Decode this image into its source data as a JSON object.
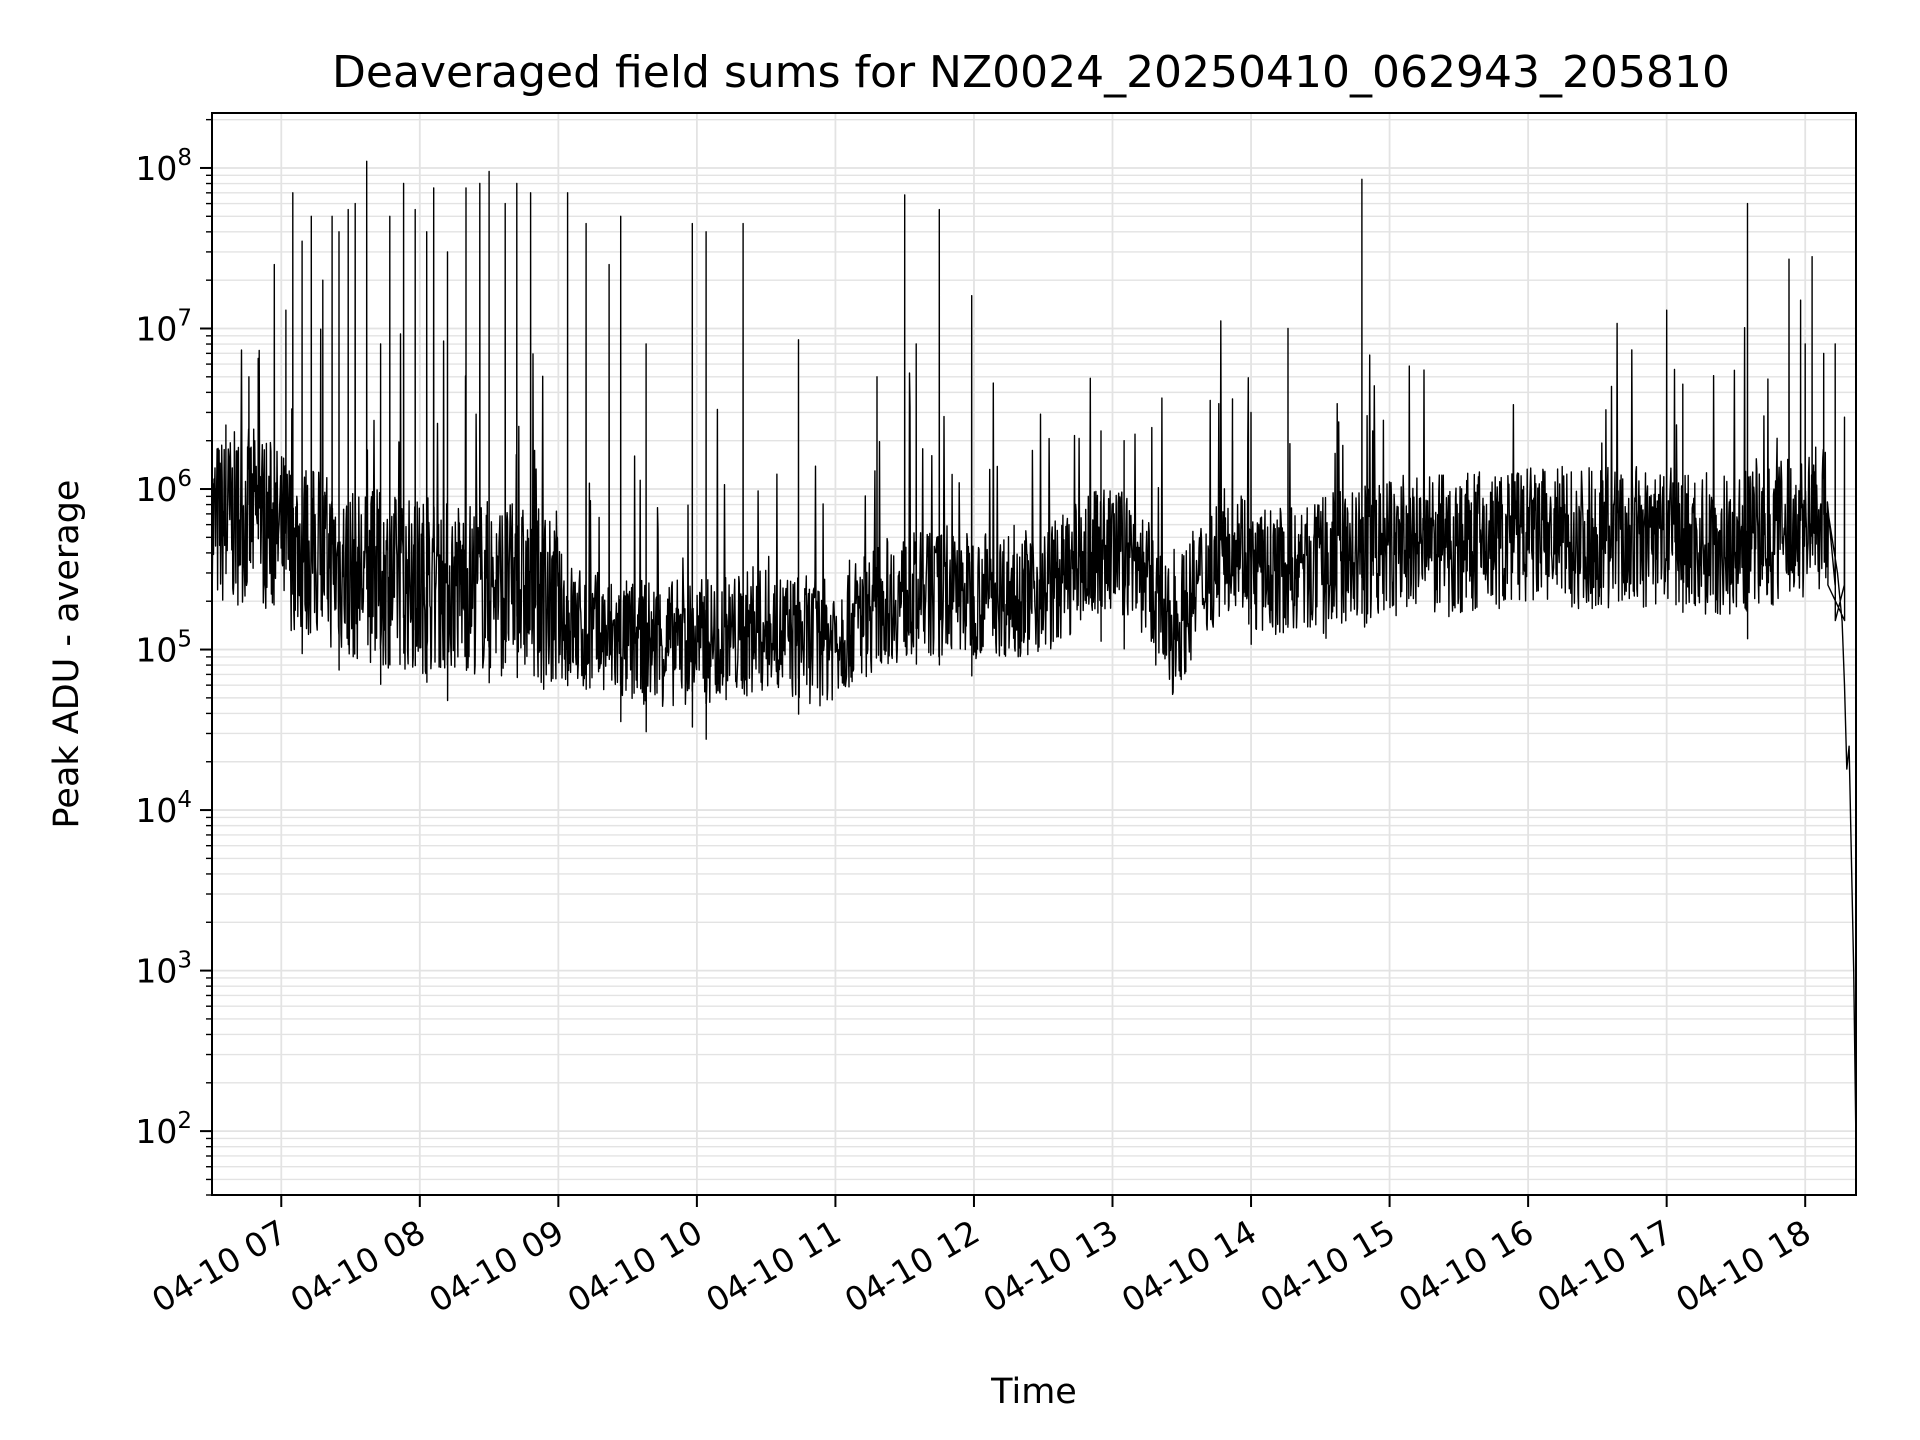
{
  "chart_data": {
    "type": "line",
    "title": "Deaveraged field sums for NZ0024_20250410_062943_205810",
    "xlabel": "Time",
    "ylabel": "Peak ADU - average",
    "yscale": "log",
    "ylim": [
      40,
      220000000
    ],
    "xlim": [
      "04-10 06:30",
      "04-10 18:22"
    ],
    "grid": true,
    "x_ticks": [
      "04-10 07",
      "04-10 08",
      "04-10 09",
      "04-10 10",
      "04-10 11",
      "04-10 12",
      "04-10 13",
      "04-10 14",
      "04-10 15",
      "04-10 16",
      "04-10 17",
      "04-10 18"
    ],
    "y_ticks": [
      {
        "value": 100,
        "base": "10",
        "exp": "2"
      },
      {
        "value": 1000,
        "base": "10",
        "exp": "3"
      },
      {
        "value": 10000,
        "base": "10",
        "exp": "4"
      },
      {
        "value": 100000,
        "base": "10",
        "exp": "5"
      },
      {
        "value": 1000000,
        "base": "10",
        "exp": "6"
      },
      {
        "value": 10000000,
        "base": "10",
        "exp": "7"
      },
      {
        "value": 100000000,
        "base": "10",
        "exp": "8"
      }
    ],
    "series": [
      {
        "color": "#000000",
        "baseline": [
          [
            "04-10 06:30",
            600000
          ],
          [
            "04-10 06:50",
            700000
          ],
          [
            "04-10 07:00",
            500000
          ],
          [
            "04-10 07:30",
            300000
          ],
          [
            "04-10 08:00",
            250000
          ],
          [
            "04-10 08:30",
            250000
          ],
          [
            "04-10 08:50",
            220000
          ],
          [
            "04-10 09:10",
            130000
          ],
          [
            "04-10 09:30",
            110000
          ],
          [
            "04-10 10:00",
            110000
          ],
          [
            "04-10 10:30",
            130000
          ],
          [
            "04-10 10:55",
            110000
          ],
          [
            "04-10 11:20",
            200000
          ],
          [
            "04-10 11:40",
            220000
          ],
          [
            "04-10 12:00",
            220000
          ],
          [
            "04-10 12:30",
            230000
          ],
          [
            "04-10 12:55",
            420000
          ],
          [
            "04-10 13:10",
            380000
          ],
          [
            "04-10 13:25",
            120000
          ],
          [
            "04-10 13:40",
            300000
          ],
          [
            "04-10 13:55",
            500000
          ],
          [
            "04-10 14:00",
            300000
          ],
          [
            "04-10 14:30",
            320000
          ],
          [
            "04-10 15:00",
            420000
          ],
          [
            "04-10 15:30",
            450000
          ],
          [
            "04-10 16:00",
            500000
          ],
          [
            "04-10 16:30",
            500000
          ],
          [
            "04-10 17:00",
            480000
          ],
          [
            "04-10 17:30",
            450000
          ],
          [
            "04-10 18:00",
            600000
          ],
          [
            "04-10 18:10",
            700000
          ]
        ],
        "spikes": [
          [
            "04-10 06:36",
            2500000
          ],
          [
            "04-10 06:46",
            5000000
          ],
          [
            "04-10 06:50",
            6500000
          ],
          [
            "04-10 06:57",
            25000000
          ],
          [
            "04-10 07:02",
            13000000
          ],
          [
            "04-10 07:05",
            70000000
          ],
          [
            "04-10 07:09",
            35000000
          ],
          [
            "04-10 07:13",
            50000000
          ],
          [
            "04-10 07:18",
            20000000
          ],
          [
            "04-10 07:22",
            50000000
          ],
          [
            "04-10 07:25",
            40000000
          ],
          [
            "04-10 07:29",
            55000000
          ],
          [
            "04-10 07:32",
            60000000
          ],
          [
            "04-10 07:37",
            110000000
          ],
          [
            "04-10 07:43",
            8000000
          ],
          [
            "04-10 07:47",
            50000000
          ],
          [
            "04-10 07:53",
            80000000
          ],
          [
            "04-10 07:58",
            55000000
          ],
          [
            "04-10 08:03",
            40000000
          ],
          [
            "04-10 08:06",
            75000000
          ],
          [
            "04-10 08:12",
            30000000
          ],
          [
            "04-10 08:20",
            75000000
          ],
          [
            "04-10 08:26",
            80000000
          ],
          [
            "04-10 08:30",
            95000000
          ],
          [
            "04-10 08:37",
            60000000
          ],
          [
            "04-10 08:42",
            80000000
          ],
          [
            "04-10 08:48",
            70000000
          ],
          [
            "04-10 09:04",
            70000000
          ],
          [
            "04-10 09:12",
            45000000
          ],
          [
            "04-10 09:22",
            25000000
          ],
          [
            "04-10 09:27",
            50000000
          ],
          [
            "04-10 09:38",
            8000000
          ],
          [
            "04-10 09:58",
            45000000
          ],
          [
            "04-10 10:04",
            40000000
          ],
          [
            "04-10 10:20",
            45000000
          ],
          [
            "04-10 10:44",
            8500000
          ],
          [
            "04-10 11:18",
            5000000
          ],
          [
            "04-10 11:30",
            68000000
          ],
          [
            "04-10 11:35",
            8000000
          ],
          [
            "04-10 11:45",
            55000000
          ],
          [
            "04-10 11:59",
            16000000
          ],
          [
            "04-10 12:55",
            2300000
          ],
          [
            "04-10 13:05",
            2000000
          ],
          [
            "04-10 13:52",
            2000000
          ],
          [
            "04-10 14:00",
            3000000
          ],
          [
            "04-10 14:16",
            10000000
          ],
          [
            "04-10 14:48",
            85000000
          ],
          [
            "04-10 17:00",
            13000000
          ],
          [
            "04-10 17:07",
            4500000
          ],
          [
            "04-10 17:35",
            60000000
          ],
          [
            "04-10 17:53",
            27000000
          ],
          [
            "04-10 17:58",
            15000000
          ],
          [
            "04-10 18:00",
            8000000
          ],
          [
            "04-10 18:03",
            28000000
          ],
          [
            "04-10 18:08",
            7000000
          ],
          [
            "04-10 18:13",
            8000000
          ],
          [
            "04-10 18:17",
            2800000
          ]
        ],
        "tail": [
          [
            "04-10 18:10",
            700000
          ],
          [
            "04-10 18:14",
            300000
          ],
          [
            "04-10 18:16",
            150000
          ],
          [
            "04-10 18:17",
            60000
          ],
          [
            "04-10 18:18",
            18000
          ],
          [
            "04-10 18:19",
            25000
          ],
          [
            "04-10 18:20",
            5000
          ],
          [
            "04-10 18:21",
            1000
          ],
          [
            "04-10 18:22",
            80
          ]
        ]
      }
    ]
  }
}
